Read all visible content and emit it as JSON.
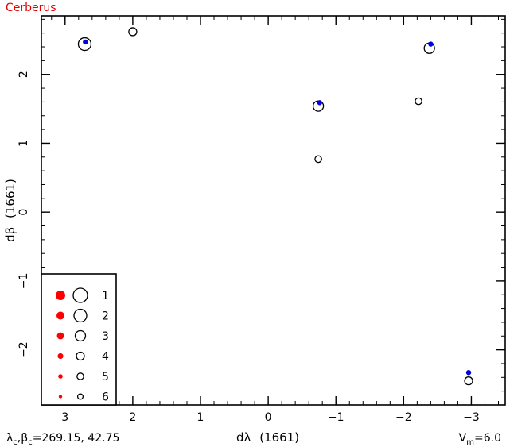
{
  "chart_data": {
    "type": "scatter",
    "title": "Cerberus",
    "xlabel_prefix": "dλ",
    "xlabel_epoch": "(1661)",
    "ylabel_prefix": "dβ",
    "ylabel_epoch": "(1661)",
    "xlim": [
      3.35,
      -3.5
    ],
    "ylim": [
      -2.8,
      2.85
    ],
    "x_ticks": [
      3,
      2,
      1,
      0,
      -1,
      -2,
      -3
    ],
    "x_tick_labels": [
      "3",
      "2",
      "1",
      "0",
      "−1",
      "−2",
      "−3"
    ],
    "y_ticks": [
      -2,
      -1,
      0,
      1,
      2
    ],
    "y_tick_labels": [
      "−2",
      "−1",
      "0",
      "1",
      "2"
    ],
    "grid": false,
    "center_label": {
      "lambda_sym": "λ",
      "beta_sym": "β",
      "sub": "c",
      "comma": ",",
      "eq": "=",
      "values": "269.15, 42.75"
    },
    "magnitude_label": {
      "sym": "V",
      "sub": "m",
      "eq": "=",
      "value": "6.0"
    },
    "legend": {
      "placement": "bottom-left",
      "entries": [
        "1",
        "2",
        "3",
        "4",
        "5",
        "6"
      ]
    },
    "colors": {
      "filled": "#ff0000",
      "blue": "#0000dd",
      "title": "#e00000",
      "axis": "#000000"
    },
    "series": [
      {
        "points": [
          {
            "x": 2.71,
            "y": 2.44,
            "mag": 2
          },
          {
            "x": 2.0,
            "y": 2.62,
            "mag": 4
          },
          {
            "x": -0.74,
            "y": 1.54,
            "mag": 3
          },
          {
            "x": -0.74,
            "y": 0.77,
            "mag": 5
          },
          {
            "x": -2.38,
            "y": 2.38,
            "mag": 3
          },
          {
            "x": -2.22,
            "y": 1.61,
            "mag": 5
          },
          {
            "x": -2.96,
            "y": -2.45,
            "mag": 4
          }
        ]
      },
      {
        "points": [
          {
            "x": 2.7,
            "y": 2.47
          },
          {
            "x": -0.76,
            "y": 1.59
          },
          {
            "x": -2.4,
            "y": 2.44
          },
          {
            "x": -2.96,
            "y": -2.33
          }
        ]
      }
    ]
  }
}
